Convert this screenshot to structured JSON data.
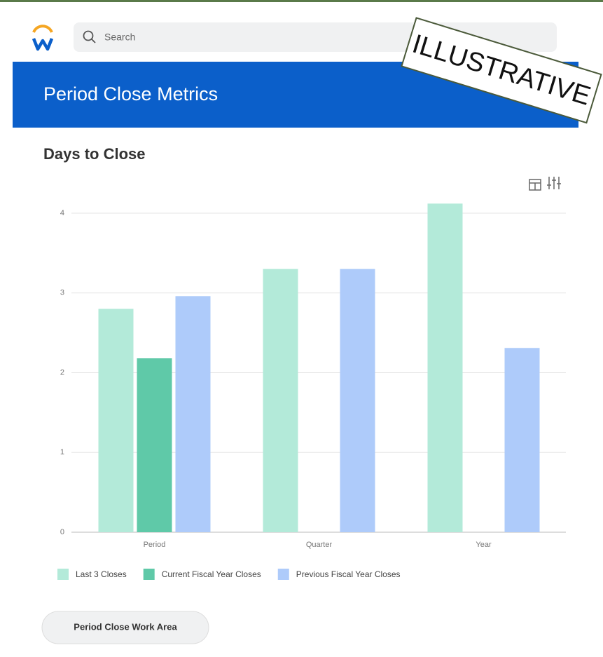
{
  "app": {
    "search_placeholder": "Search",
    "page_title": "Period Close Metrics",
    "stamp": "ILLUSTRATIVE",
    "button": "Period Close Work Area"
  },
  "chart_data": {
    "type": "bar",
    "title": "Days to Close",
    "categories": [
      "Period",
      "Quarter",
      "Year"
    ],
    "series": [
      {
        "name": "Last 3 Closes",
        "color": "#b3ead9",
        "values": [
          2.8,
          3.3,
          4.12
        ]
      },
      {
        "name": "Current Fiscal Year Closes",
        "color": "#5fc9a8",
        "values": [
          2.18,
          null,
          null
        ]
      },
      {
        "name": "Previous Fiscal Year Closes",
        "color": "#aecbfa",
        "values": [
          2.96,
          3.3,
          2.31
        ]
      }
    ],
    "ylim": [
      0,
      4.2
    ],
    "yticks": [
      0,
      1,
      2,
      3,
      4
    ],
    "grid": true
  }
}
